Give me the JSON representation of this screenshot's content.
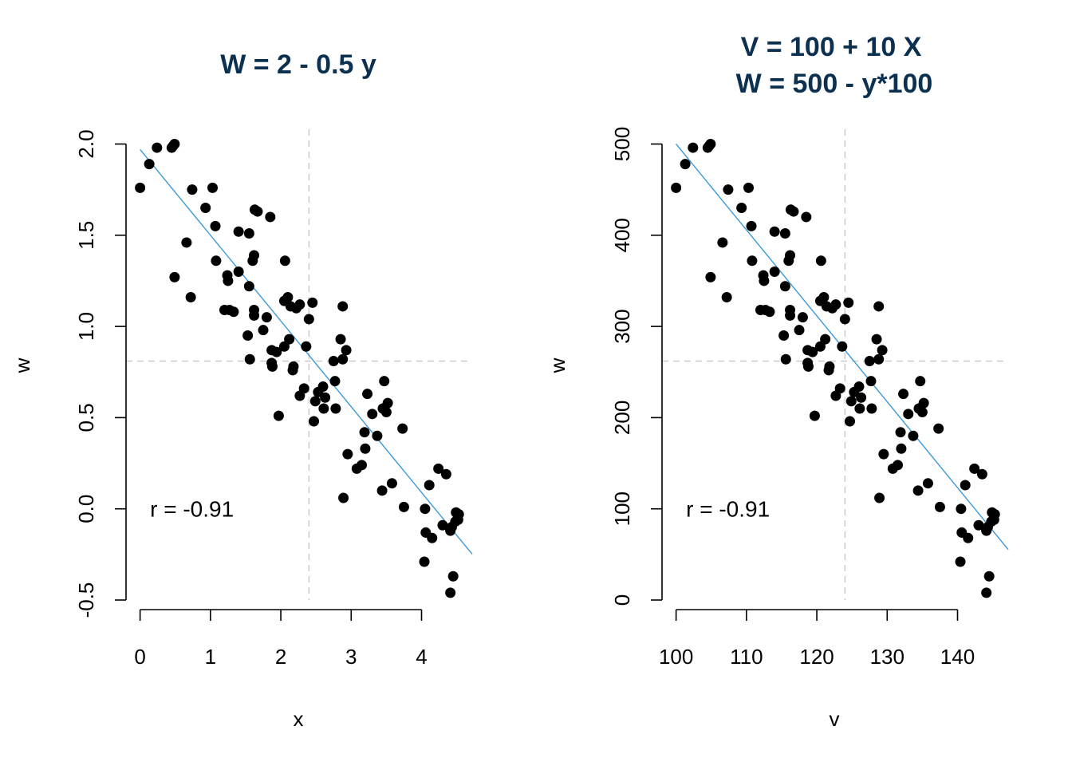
{
  "colors": {
    "title": "#0b3050",
    "fit_line": "#3a9ad9",
    "ref_line": "#cfcfcf",
    "points": "#000000"
  },
  "chart_data": [
    {
      "type": "scatter",
      "title_lines": [
        "W = 2 - 0.5  y"
      ],
      "xlabel": "x",
      "ylabel": "w",
      "xlim": [
        -0.2,
        4.72
      ],
      "ylim": [
        -0.5,
        2.0
      ],
      "xticks": [
        0,
        1,
        2,
        3,
        4
      ],
      "xtick_labels": [
        "0",
        "1",
        "2",
        "3",
        "4"
      ],
      "yticks": [
        -0.5,
        0,
        0.5,
        1,
        1.5,
        2
      ],
      "ytick_labels": [
        "-0.5",
        "0.0",
        "0.5",
        "1.0",
        "1.5",
        "2.0"
      ],
      "annotation": "r = -0.91",
      "annotation_pos": [
        0.3,
        0.0
      ],
      "ref_x": 2.4,
      "ref_y": 0.81,
      "fit": {
        "intercept": 1.97,
        "slope": -0.47
      },
      "grid": false,
      "points": [
        [
          0.0,
          1.76
        ],
        [
          0.13,
          1.89
        ],
        [
          0.24,
          1.98
        ],
        [
          0.45,
          1.98
        ],
        [
          0.49,
          2.0
        ],
        [
          0.47,
          1.99
        ],
        [
          0.49,
          1.27
        ],
        [
          0.66,
          1.46
        ],
        [
          0.72,
          1.16
        ],
        [
          0.74,
          1.75
        ],
        [
          0.93,
          1.65
        ],
        [
          1.03,
          1.76
        ],
        [
          1.07,
          1.55
        ],
        [
          1.08,
          1.36
        ],
        [
          1.2,
          1.09
        ],
        [
          1.24,
          1.28
        ],
        [
          1.25,
          1.25
        ],
        [
          1.27,
          1.09
        ],
        [
          1.33,
          1.08
        ],
        [
          1.4,
          1.52
        ],
        [
          1.4,
          1.3
        ],
        [
          1.53,
          0.95
        ],
        [
          1.55,
          1.51
        ],
        [
          1.55,
          1.22
        ],
        [
          1.56,
          0.82
        ],
        [
          1.6,
          1.36
        ],
        [
          1.62,
          1.39
        ],
        [
          1.62,
          1.09
        ],
        [
          1.62,
          1.06
        ],
        [
          1.63,
          1.64
        ],
        [
          1.67,
          1.63
        ],
        [
          1.75,
          0.98
        ],
        [
          1.8,
          1.05
        ],
        [
          1.85,
          1.6
        ],
        [
          1.87,
          0.87
        ],
        [
          1.87,
          0.8
        ],
        [
          1.88,
          0.78
        ],
        [
          1.94,
          0.86
        ],
        [
          1.97,
          0.51
        ],
        [
          2.05,
          1.14
        ],
        [
          2.05,
          0.89
        ],
        [
          2.06,
          1.36
        ],
        [
          2.1,
          1.16
        ],
        [
          2.12,
          0.93
        ],
        [
          2.14,
          1.11
        ],
        [
          2.17,
          0.76
        ],
        [
          2.18,
          0.78
        ],
        [
          2.22,
          1.1
        ],
        [
          2.27,
          1.12
        ],
        [
          2.27,
          0.62
        ],
        [
          2.33,
          0.66
        ],
        [
          2.36,
          0.89
        ],
        [
          2.4,
          1.04
        ],
        [
          2.45,
          1.13
        ],
        [
          2.47,
          0.48
        ],
        [
          2.49,
          0.59
        ],
        [
          2.53,
          0.64
        ],
        [
          2.6,
          0.67
        ],
        [
          2.61,
          0.55
        ],
        [
          2.63,
          0.61
        ],
        [
          2.75,
          0.81
        ],
        [
          2.77,
          0.7
        ],
        [
          2.78,
          0.55
        ],
        [
          2.85,
          0.93
        ],
        [
          2.88,
          0.82
        ],
        [
          2.88,
          1.11
        ],
        [
          2.89,
          0.06
        ],
        [
          2.93,
          0.87
        ],
        [
          2.95,
          0.3
        ],
        [
          3.08,
          0.22
        ],
        [
          3.15,
          0.24
        ],
        [
          3.19,
          0.42
        ],
        [
          3.2,
          0.33
        ],
        [
          3.23,
          0.63
        ],
        [
          3.3,
          0.52
        ],
        [
          3.37,
          0.4
        ],
        [
          3.44,
          0.1
        ],
        [
          3.45,
          0.55
        ],
        [
          3.47,
          0.7
        ],
        [
          3.5,
          0.53
        ],
        [
          3.52,
          0.58
        ],
        [
          3.58,
          0.14
        ],
        [
          3.73,
          0.44
        ],
        [
          3.75,
          0.01
        ],
        [
          4.04,
          -0.29
        ],
        [
          4.05,
          0.0
        ],
        [
          4.06,
          -0.13
        ],
        [
          4.11,
          0.13
        ],
        [
          4.15,
          -0.16
        ],
        [
          4.24,
          0.22
        ],
        [
          4.3,
          -0.09
        ],
        [
          4.35,
          0.19
        ],
        [
          4.41,
          -0.46
        ],
        [
          4.43,
          -0.1
        ],
        [
          4.45,
          -0.37
        ],
        [
          4.48,
          -0.07
        ],
        [
          4.49,
          -0.02
        ],
        [
          4.52,
          -0.06
        ],
        [
          4.53,
          -0.03
        ],
        [
          4.41,
          -0.12
        ]
      ]
    },
    {
      "type": "scatter",
      "title_lines": [
        "V = 100 + 10 X",
        "W = 500 - y*100"
      ],
      "xlabel": "v",
      "ylabel": "w",
      "xlim": [
        98,
        147.2
      ],
      "ylim": [
        0,
        500
      ],
      "xticks": [
        100,
        110,
        120,
        130,
        140
      ],
      "xtick_labels": [
        "100",
        "110",
        "120",
        "130",
        "140"
      ],
      "yticks": [
        0,
        100,
        200,
        300,
        400,
        500
      ],
      "ytick_labels": [
        "0",
        "100",
        "200",
        "300",
        "400",
        "500"
      ],
      "annotation": "r = -0.91",
      "annotation_pos": [
        103,
        100
      ],
      "ref_x": 124,
      "ref_y": 262,
      "fit": {
        "intercept": 1442,
        "slope": -9.42
      },
      "grid": false,
      "points": [
        [
          100.0,
          452
        ],
        [
          101.3,
          478
        ],
        [
          102.4,
          496
        ],
        [
          104.5,
          496
        ],
        [
          104.9,
          500
        ],
        [
          104.7,
          498
        ],
        [
          104.9,
          354
        ],
        [
          106.6,
          392
        ],
        [
          107.2,
          332
        ],
        [
          107.4,
          450
        ],
        [
          109.3,
          430
        ],
        [
          110.3,
          452
        ],
        [
          110.7,
          410
        ],
        [
          110.8,
          372
        ],
        [
          112.0,
          318
        ],
        [
          112.4,
          356
        ],
        [
          112.5,
          350
        ],
        [
          112.7,
          318
        ],
        [
          113.3,
          316
        ],
        [
          114.0,
          404
        ],
        [
          114.0,
          360
        ],
        [
          115.3,
          290
        ],
        [
          115.5,
          402
        ],
        [
          115.5,
          344
        ],
        [
          115.6,
          264
        ],
        [
          116.0,
          372
        ],
        [
          116.2,
          378
        ],
        [
          116.2,
          318
        ],
        [
          116.2,
          312
        ],
        [
          116.3,
          428
        ],
        [
          116.7,
          426
        ],
        [
          117.5,
          296
        ],
        [
          118.0,
          310
        ],
        [
          118.5,
          420
        ],
        [
          118.7,
          274
        ],
        [
          118.7,
          260
        ],
        [
          118.8,
          256
        ],
        [
          119.4,
          272
        ],
        [
          119.7,
          202
        ],
        [
          120.5,
          328
        ],
        [
          120.5,
          278
        ],
        [
          120.6,
          372
        ],
        [
          121.0,
          332
        ],
        [
          121.2,
          286
        ],
        [
          121.4,
          322
        ],
        [
          121.7,
          252
        ],
        [
          121.8,
          256
        ],
        [
          122.2,
          320
        ],
        [
          122.7,
          324
        ],
        [
          122.7,
          224
        ],
        [
          123.3,
          232
        ],
        [
          123.6,
          278
        ],
        [
          124.0,
          308
        ],
        [
          124.5,
          326
        ],
        [
          124.7,
          196
        ],
        [
          124.9,
          218
        ],
        [
          125.3,
          228
        ],
        [
          126.0,
          234
        ],
        [
          126.1,
          210
        ],
        [
          126.3,
          222
        ],
        [
          127.5,
          262
        ],
        [
          127.7,
          240
        ],
        [
          127.8,
          210
        ],
        [
          128.5,
          286
        ],
        [
          128.8,
          264
        ],
        [
          128.8,
          322
        ],
        [
          128.9,
          112
        ],
        [
          129.3,
          274
        ],
        [
          129.5,
          160
        ],
        [
          130.8,
          144
        ],
        [
          131.5,
          148
        ],
        [
          131.9,
          184
        ],
        [
          132.0,
          166
        ],
        [
          132.3,
          226
        ],
        [
          133.0,
          204
        ],
        [
          133.7,
          180
        ],
        [
          134.4,
          120
        ],
        [
          134.5,
          210
        ],
        [
          134.7,
          240
        ],
        [
          135.0,
          206
        ],
        [
          135.2,
          216
        ],
        [
          135.8,
          128
        ],
        [
          137.3,
          188
        ],
        [
          137.5,
          102
        ],
        [
          140.4,
          42
        ],
        [
          140.5,
          100
        ],
        [
          140.6,
          74
        ],
        [
          141.1,
          126
        ],
        [
          141.5,
          68
        ],
        [
          142.4,
          144
        ],
        [
          143.0,
          82
        ],
        [
          143.5,
          138
        ],
        [
          144.1,
          8
        ],
        [
          144.3,
          80
        ],
        [
          144.5,
          26
        ],
        [
          144.8,
          86
        ],
        [
          144.9,
          96
        ],
        [
          145.2,
          88
        ],
        [
          145.3,
          94
        ],
        [
          144.1,
          76
        ]
      ]
    }
  ]
}
